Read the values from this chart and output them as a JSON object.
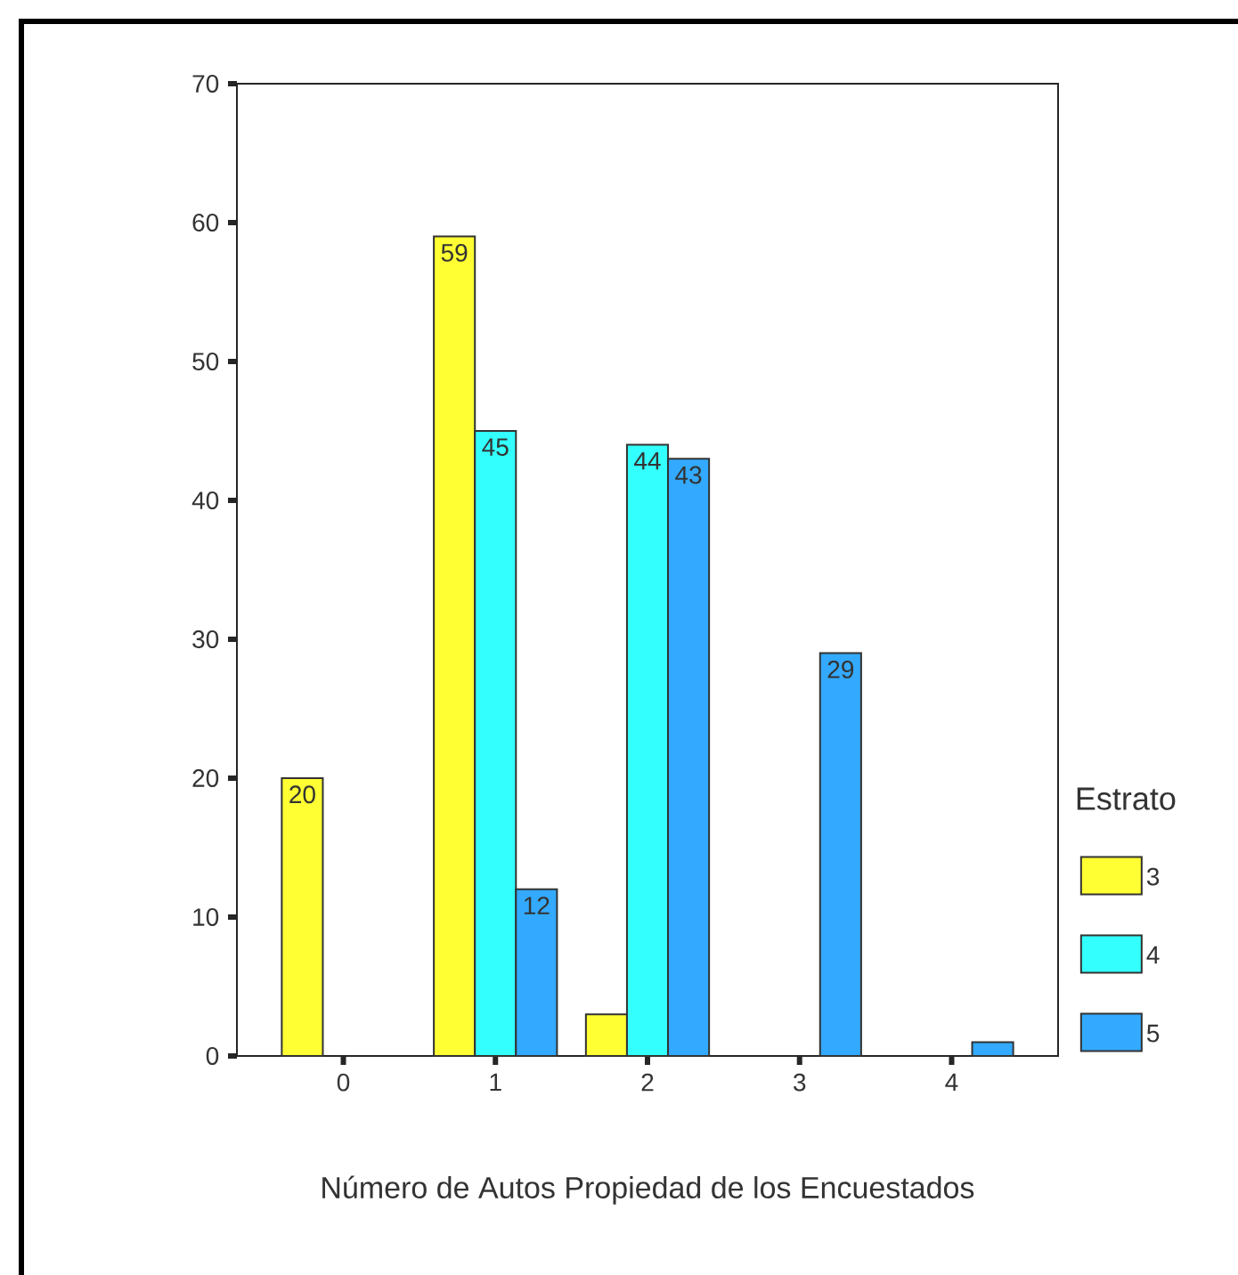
{
  "chart_data": {
    "type": "bar",
    "xlabel": "Número de Autos Propiedad de los Encuestados",
    "legend_title": "Estrato",
    "legend": "right",
    "categories": [
      "0",
      "1",
      "2",
      "3",
      "4"
    ],
    "series": [
      {
        "name": "3",
        "color": "#ffff33",
        "values": [
          20,
          59,
          3,
          null,
          null
        ],
        "value_labels": [
          "20",
          "59",
          null,
          null,
          null
        ]
      },
      {
        "name": "4",
        "color": "#33ffff",
        "values": [
          null,
          45,
          44,
          null,
          null
        ],
        "value_labels": [
          null,
          "45",
          "44",
          null,
          null
        ]
      },
      {
        "name": "5",
        "color": "#33aaff",
        "values": [
          null,
          12,
          43,
          29,
          1
        ],
        "value_labels": [
          null,
          "12",
          "43",
          "29",
          null
        ]
      }
    ],
    "ylim": [
      0,
      70
    ],
    "yticks": [
      0,
      10,
      20,
      30,
      40,
      50,
      60,
      70
    ]
  }
}
